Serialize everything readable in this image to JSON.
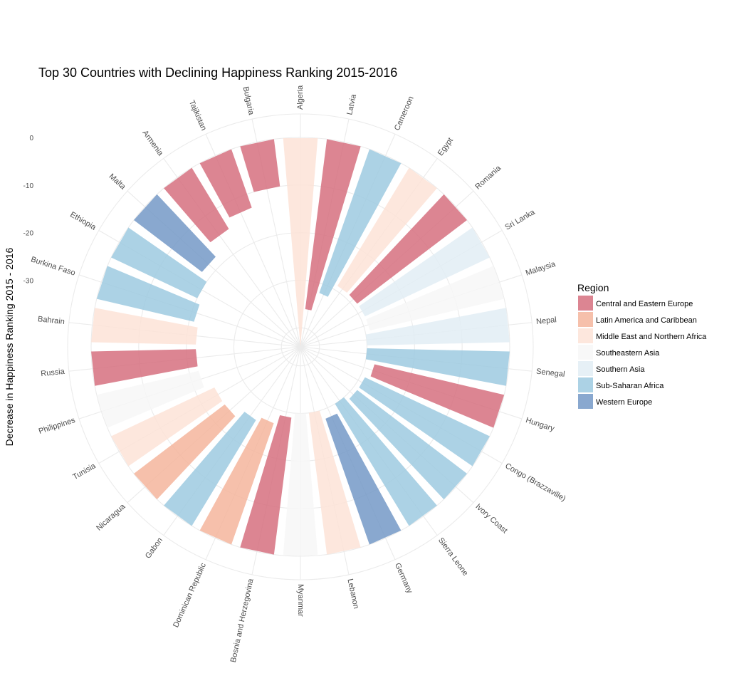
{
  "chart_data": {
    "type": "bar",
    "coord": "polar",
    "title": "Top 30 Countries with Declining Happiness Ranking 2015-2016",
    "xlabel": "",
    "ylabel": "Decrease in Happiness Ranking 2015 - 2016",
    "ylim": [
      -44,
      0
    ],
    "y_ticks": [
      0,
      -10,
      -20,
      -30
    ],
    "y_tick_labels": [
      "0",
      "-10",
      "-20",
      "-30"
    ],
    "grid": true,
    "legend": {
      "title": "Region",
      "placement": "right",
      "entries": [
        {
          "name": "Central and Eastern Europe",
          "color": "#D6707F"
        },
        {
          "name": "Latin America and Caribbean",
          "color": "#F4B59C"
        },
        {
          "name": "Middle East and Northern Africa",
          "color": "#FDE3D7"
        },
        {
          "name": "Southeastern Asia",
          "color": "#F7F7F7"
        },
        {
          "name": "Southern Asia",
          "color": "#E2EDF5"
        },
        {
          "name": "Sub-Saharan Africa",
          "color": "#9DCAE1"
        },
        {
          "name": "Western Europe",
          "color": "#7499C7"
        }
      ]
    },
    "categories": [
      "Algeria",
      "Latvia",
      "Cameroon",
      "Egypt",
      "Romania",
      "Sri Lanka",
      "Malaysia",
      "Nepal",
      "Senegal",
      "Hungary",
      "Congo (Brazzaville)",
      "Ivory Coast",
      "Sierra Leone",
      "Germany",
      "Lebanon",
      "Myanmar",
      "Bosnia and Herzegovina",
      "Dominican Republic",
      "Gabon",
      "Nicaragua",
      "Tunisia",
      "Philippines",
      "Russia",
      "Bahrain",
      "Burkina Faso",
      "Ethiopia",
      "Malta",
      "Armenia",
      "Tajikistan",
      "Bulgaria"
    ],
    "regions": [
      "Middle East and Northern Africa",
      "Central and Eastern Europe",
      "Sub-Saharan Africa",
      "Middle East and Northern Africa",
      "Central and Eastern Europe",
      "Southern Asia",
      "Southeastern Asia",
      "Southern Asia",
      "Sub-Saharan Africa",
      "Central and Eastern Europe",
      "Sub-Saharan Africa",
      "Sub-Saharan Africa",
      "Sub-Saharan Africa",
      "Western Europe",
      "Middle East and Northern Africa",
      "Southeastern Asia",
      "Central and Eastern Europe",
      "Latin America and Caribbean",
      "Sub-Saharan Africa",
      "Latin America and Caribbean",
      "Middle East and Northern Africa",
      "Southeastern Asia",
      "Central and Eastern Europe",
      "Middle East and Northern Africa",
      "Sub-Saharan Africa",
      "Sub-Saharan Africa",
      "Western Europe",
      "Central and Eastern Europe",
      "Central and Eastern Europe",
      "Central and Eastern Europe"
    ],
    "values": [
      -44,
      -36,
      -32,
      -29,
      -29,
      -29,
      -29,
      -30,
      -30,
      -28,
      -29,
      -29,
      -30,
      -28,
      -30,
      -30,
      -29,
      -27,
      -26,
      -24,
      -24,
      -22,
      -22,
      -22,
      -21,
      -20,
      -18,
      -15,
      -13,
      -10
    ]
  }
}
